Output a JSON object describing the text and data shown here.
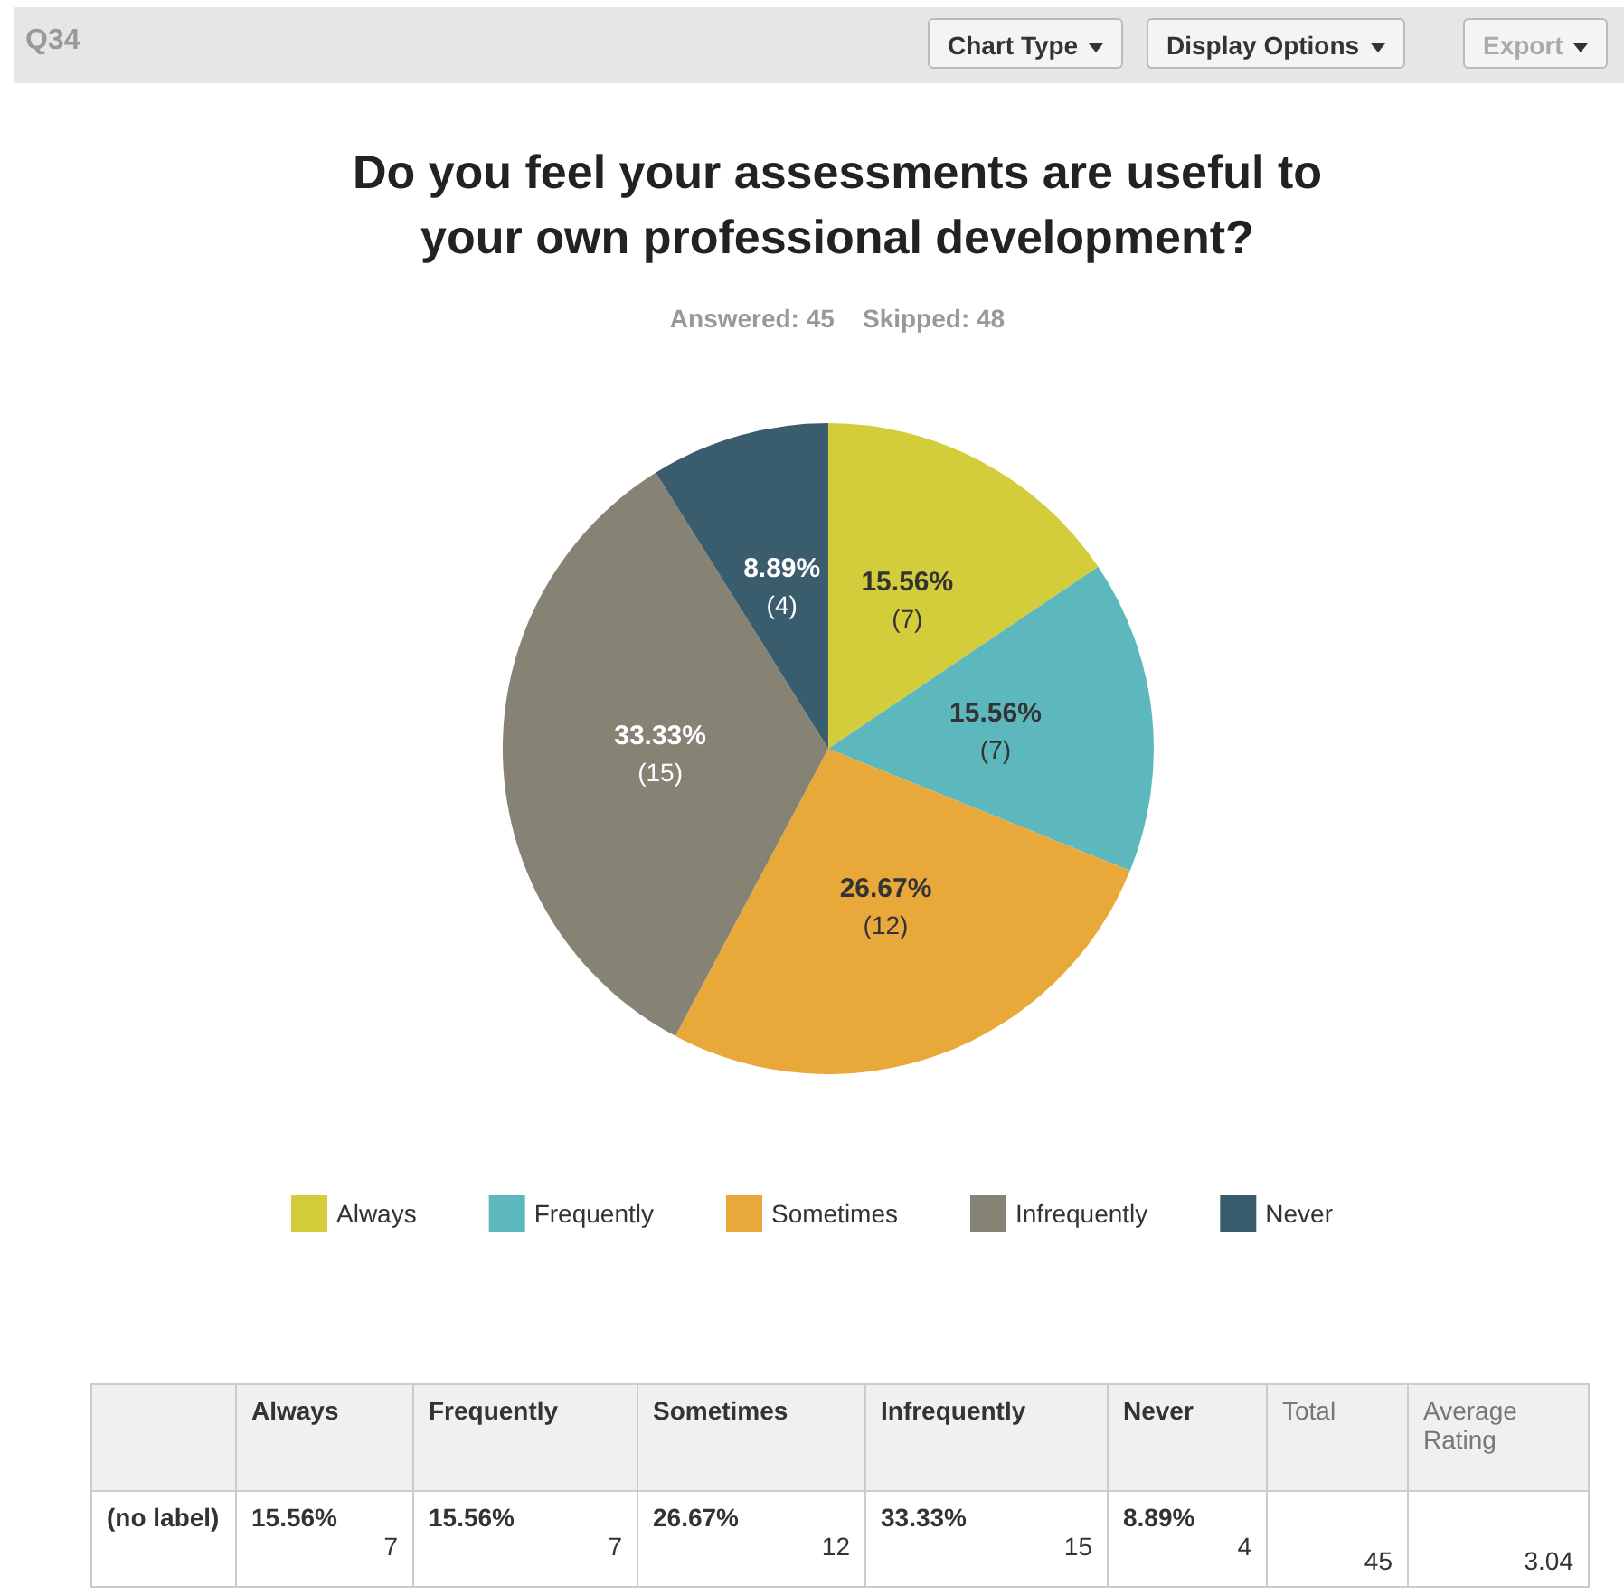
{
  "chart_data": {
    "type": "pie",
    "title": "Do you feel your assessments are useful to\nyour own professional development?",
    "subtitle": "Answered: 45    Skipped: 48",
    "categories": [
      "Always",
      "Frequently",
      "Sometimes",
      "Infrequently",
      "Never"
    ],
    "values": [
      15.56,
      15.56,
      26.67,
      33.33,
      8.89
    ],
    "value_labels": [
      "15.56%\n(7)",
      "15.56%\n(7)",
      "26.67%\n(12)",
      "33.33%\n(15)",
      "8.89%\n(4)"
    ],
    "colors": [
      "#d4cd3b",
      "#5db8bd",
      "#e9a93a",
      "#868274",
      "#3a5d6e"
    ],
    "legend": "bottom",
    "annotations": [
      "Q34",
      "Chart Type",
      "Display Options",
      "Export",
      "(no label)",
      "15.56%",
      "7",
      "15.56%",
      "7",
      "26.67%",
      "12",
      "33.33%",
      "15",
      "8.89%",
      "4",
      "Total",
      "45",
      "Average Rating",
      "3.04"
    ]
  }
}
